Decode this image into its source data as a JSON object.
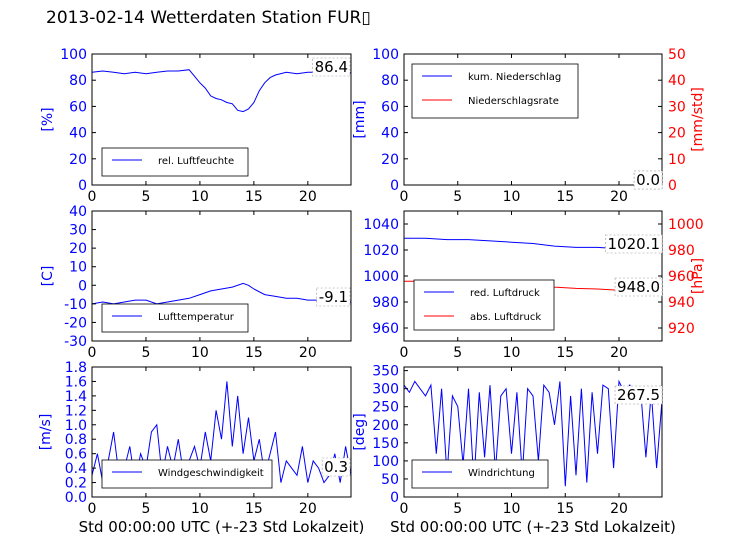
{
  "page_title": "2013-02-14 Wetterdaten Station FUR▯",
  "xlabel_shared": "Std 00:00:00 UTC (+-23 Std Lokalzeit)",
  "colors": {
    "blue": "#0000ff",
    "red": "#ff0000",
    "black": "#000000"
  },
  "chart_data": [
    {
      "type": "line",
      "panel": "humidity",
      "xlim": [
        0,
        24
      ],
      "xticks": [
        0,
        5,
        10,
        15,
        20
      ],
      "ylim": [
        0,
        100
      ],
      "yticks": [
        0,
        20,
        40,
        60,
        80,
        100
      ],
      "ylabel": "[%]",
      "grid": false,
      "legend_placement": "bottom-left",
      "current_value_label": "86.4",
      "series": [
        {
          "name": "rel. Luftfeuchte",
          "color": "#0000ff",
          "x": [
            0,
            1,
            2,
            3,
            4,
            5,
            6,
            7,
            8,
            9,
            10,
            10.5,
            11,
            11.5,
            12,
            12.5,
            13,
            13.5,
            14,
            14.5,
            15,
            15.5,
            16,
            16.5,
            17,
            18,
            19,
            20,
            21,
            22,
            23,
            24
          ],
          "y": [
            86,
            87,
            86,
            85,
            86,
            85,
            86,
            87,
            87,
            88,
            78,
            74,
            68,
            66,
            65,
            63,
            62,
            57,
            56,
            58,
            63,
            72,
            78,
            82,
            84,
            86,
            85,
            86,
            86,
            85,
            84,
            86
          ]
        }
      ]
    },
    {
      "type": "line",
      "panel": "precipitation",
      "xlim": [
        0,
        24
      ],
      "xticks": [
        0,
        5,
        10,
        15,
        20
      ],
      "ylim": [
        0,
        100
      ],
      "yticks": [
        0,
        20,
        40,
        60,
        80,
        100
      ],
      "ylabel": "[mm]",
      "y2lim": [
        0,
        50
      ],
      "y2ticks": [
        0,
        10,
        20,
        30,
        40,
        50
      ],
      "y2label": "[mm/std]",
      "grid": false,
      "legend_placement": "top-left",
      "current_value_labels": [
        "0.0",
        "0.0"
      ],
      "series": [
        {
          "name": "kum. Niederschlag",
          "color": "#0000ff",
          "axis": "left",
          "x": [
            0,
            24
          ],
          "y": [
            0,
            0
          ]
        },
        {
          "name": "Niederschlagsrate",
          "color": "#ff0000",
          "axis": "right",
          "x": [
            0,
            24
          ],
          "y": [
            0,
            0
          ]
        }
      ]
    },
    {
      "type": "line",
      "panel": "temperature",
      "xlim": [
        0,
        24
      ],
      "xticks": [
        0,
        5,
        10,
        15,
        20
      ],
      "ylim": [
        -30,
        40
      ],
      "yticks": [
        -30,
        -20,
        -10,
        0,
        10,
        20,
        30,
        40
      ],
      "ylabel": "[C]",
      "grid": false,
      "legend_placement": "bottom-left",
      "current_value_label": "-9.1",
      "series": [
        {
          "name": "Lufttemperatur",
          "color": "#0000ff",
          "x": [
            0,
            1,
            2,
            3,
            4,
            5,
            6,
            7,
            8,
            9,
            10,
            11,
            12,
            13,
            14,
            14.5,
            15,
            16,
            17,
            18,
            19,
            20,
            21,
            22,
            23,
            24
          ],
          "y": [
            -10,
            -9,
            -10,
            -9,
            -8,
            -8,
            -10,
            -9,
            -8,
            -7,
            -5,
            -3,
            -2,
            -1,
            1,
            0,
            -2,
            -5,
            -6,
            -7,
            -7,
            -8,
            -8,
            -8,
            -9,
            -9
          ]
        }
      ]
    },
    {
      "type": "line",
      "panel": "pressure",
      "xlim": [
        0,
        24
      ],
      "xticks": [
        0,
        5,
        10,
        15,
        20
      ],
      "ylim": [
        950,
        1050
      ],
      "yticks": [
        960,
        980,
        1000,
        1020,
        1040
      ],
      "y2lim": [
        910,
        1010
      ],
      "y2ticks": [
        920,
        940,
        960,
        980,
        1000
      ],
      "y2label": "[hPa]",
      "grid": false,
      "legend_placement": "bottom-left",
      "current_value_labels": [
        "1020.1",
        "948.0"
      ],
      "series": [
        {
          "name": "red. Luftdruck",
          "color": "#0000ff",
          "axis": "left",
          "x": [
            0,
            2,
            4,
            6,
            8,
            10,
            12,
            14,
            16,
            18,
            20,
            22,
            24
          ],
          "y": [
            1029,
            1029,
            1028,
            1028,
            1027,
            1026,
            1025,
            1023,
            1022,
            1022,
            1021,
            1021,
            1020
          ]
        },
        {
          "name": "abs. Luftdruck",
          "color": "#ff0000",
          "axis": "right",
          "x": [
            0,
            2,
            4,
            6,
            8,
            10,
            12,
            14,
            16,
            18,
            20,
            22,
            24
          ],
          "y": [
            956,
            956,
            956,
            955.5,
            955,
            954,
            953,
            951.5,
            950.5,
            950,
            949,
            948.5,
            948
          ]
        }
      ]
    },
    {
      "type": "line",
      "panel": "windspeed",
      "xlim": [
        0,
        24
      ],
      "xticks": [
        0,
        5,
        10,
        15,
        20
      ],
      "ylim": [
        0,
        1.8
      ],
      "yticks": [
        0.0,
        0.2,
        0.4,
        0.6,
        0.8,
        1.0,
        1.2,
        1.4,
        1.6,
        1.8
      ],
      "ylabel": "[m/s]",
      "grid": false,
      "legend_placement": "bottom-left",
      "current_value_label": "0.3",
      "series": [
        {
          "name": "Windgeschwindigkeit",
          "color": "#0000ff",
          "x": [
            0,
            0.5,
            1,
            1.5,
            2,
            2.5,
            3,
            3.5,
            4,
            4.5,
            5,
            5.5,
            6,
            6.5,
            7,
            7.5,
            8,
            8.5,
            9,
            9.5,
            10,
            10.5,
            11,
            11.5,
            12,
            12.5,
            13,
            13.5,
            14,
            14.5,
            15,
            15.5,
            16,
            16.5,
            17,
            17.5,
            18,
            18.5,
            19,
            19.5,
            20,
            20.5,
            21,
            21.5,
            22,
            22.5,
            23,
            23.5,
            24
          ],
          "y": [
            0.3,
            0.6,
            0.2,
            0.5,
            0.9,
            0.3,
            0.4,
            0.7,
            0.2,
            0.6,
            0.4,
            0.9,
            1.0,
            0.3,
            0.7,
            0.4,
            0.8,
            0.3,
            0.5,
            0.7,
            0.4,
            0.9,
            0.5,
            1.2,
            0.8,
            1.6,
            0.7,
            1.4,
            0.6,
            1.1,
            0.5,
            0.8,
            0.3,
            0.6,
            0.9,
            0.2,
            0.5,
            0.4,
            0.3,
            0.7,
            0.2,
            0.5,
            0.4,
            0.2,
            0.3,
            0.6,
            0.2,
            0.7,
            0.3
          ]
        }
      ]
    },
    {
      "type": "line",
      "panel": "winddirection",
      "xlim": [
        0,
        24
      ],
      "xticks": [
        0,
        5,
        10,
        15,
        20
      ],
      "ylim": [
        0,
        360
      ],
      "yticks": [
        0,
        50,
        100,
        150,
        200,
        250,
        300,
        350
      ],
      "ylabel": "[deg]",
      "grid": false,
      "legend_placement": "bottom-left",
      "current_value_label": "267.5",
      "series": [
        {
          "name": "Windrichtung",
          "color": "#0000ff",
          "x": [
            0,
            0.5,
            1,
            1.5,
            2,
            2.5,
            3,
            3.5,
            4,
            4.5,
            5,
            5.5,
            6,
            6.5,
            7,
            7.5,
            8,
            8.5,
            9,
            9.5,
            10,
            10.5,
            11,
            11.5,
            12,
            12.5,
            13,
            13.5,
            14,
            14.5,
            15,
            15.5,
            16,
            16.5,
            17,
            17.5,
            18,
            18.5,
            19,
            19.5,
            20,
            20.5,
            21,
            21.5,
            22,
            22.5,
            23,
            23.5,
            24
          ],
          "y": [
            310,
            290,
            320,
            300,
            280,
            310,
            120,
            300,
            60,
            280,
            250,
            90,
            300,
            40,
            290,
            110,
            310,
            70,
            280,
            300,
            120,
            290,
            60,
            300,
            280,
            100,
            310,
            290,
            200,
            320,
            30,
            280,
            60,
            300,
            40,
            290,
            120,
            310,
            300,
            80,
            320,
            290,
            310,
            260,
            300,
            110,
            290,
            80,
            267
          ]
        }
      ]
    }
  ]
}
